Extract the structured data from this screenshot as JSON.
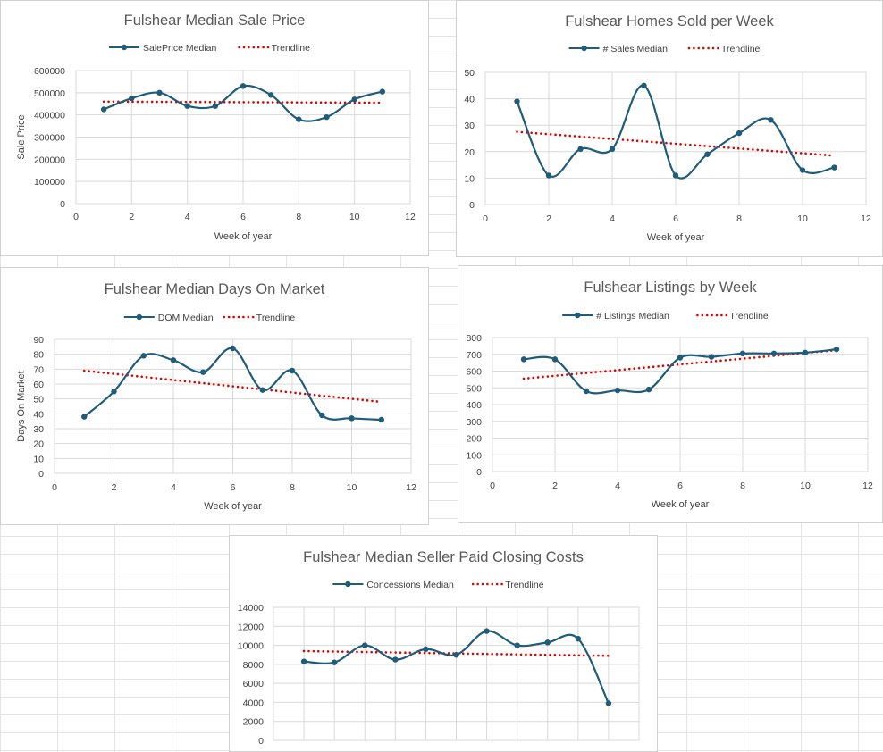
{
  "chart_data": [
    {
      "type": "line",
      "title": "Fulshear Median Sale Price",
      "xlabel": "Week of year",
      "ylabel": "Sale Price",
      "xlim": [
        0,
        12
      ],
      "ylim": [
        0,
        600000
      ],
      "x_ticks": [
        "0",
        "2",
        "4",
        "6",
        "8",
        "10",
        "12"
      ],
      "y_ticks": [
        "0",
        "100000",
        "200000",
        "300000",
        "400000",
        "500000",
        "600000"
      ],
      "grid": true,
      "legend": "top",
      "series": [
        {
          "name": "SalePrice Median",
          "color": "#1f5c7a",
          "x": [
            1,
            2,
            3,
            4,
            5,
            6,
            7,
            8,
            9,
            10,
            11
          ],
          "values": [
            425000,
            475000,
            500000,
            440000,
            440000,
            530000,
            490000,
            380000,
            390000,
            470000,
            505000
          ]
        },
        {
          "name": "Trendline",
          "color": "#e00000",
          "style": "dotted",
          "x": [
            1,
            11
          ],
          "values": [
            460000,
            455000
          ]
        }
      ]
    },
    {
      "type": "line",
      "title": "Fulshear Homes Sold per Week",
      "xlabel": "Week of year",
      "ylabel": "",
      "xlim": [
        0,
        12
      ],
      "ylim": [
        0,
        50
      ],
      "x_ticks": [
        "0",
        "2",
        "4",
        "6",
        "8",
        "10",
        "12"
      ],
      "y_ticks": [
        "0",
        "10",
        "20",
        "30",
        "40",
        "50"
      ],
      "grid": true,
      "legend": "top",
      "series": [
        {
          "name": "# Sales Median",
          "color": "#1f5c7a",
          "x": [
            1,
            2,
            3,
            4,
            5,
            6,
            7,
            8,
            9,
            10,
            11
          ],
          "values": [
            39,
            11,
            21,
            21,
            45,
            11,
            19,
            27,
            32,
            13,
            14
          ]
        },
        {
          "name": "Trendline",
          "color": "#e00000",
          "style": "dotted",
          "x": [
            1,
            11
          ],
          "values": [
            27.5,
            18.5
          ]
        }
      ]
    },
    {
      "type": "line",
      "title": "Fulshear Median Days On Market",
      "xlabel": "Week of year",
      "ylabel": "Days On Market",
      "xlim": [
        0,
        12
      ],
      "ylim": [
        0,
        90
      ],
      "x_ticks": [
        "0",
        "2",
        "4",
        "6",
        "8",
        "10",
        "12"
      ],
      "y_ticks": [
        "0",
        "10",
        "20",
        "30",
        "40",
        "50",
        "60",
        "70",
        "80",
        "90"
      ],
      "grid": true,
      "legend": "top",
      "series": [
        {
          "name": "DOM Median",
          "color": "#1f5c7a",
          "x": [
            1,
            2,
            3,
            4,
            5,
            6,
            7,
            8,
            9,
            10,
            11
          ],
          "values": [
            38,
            55,
            79,
            76,
            68,
            84,
            56,
            69,
            39,
            37,
            36
          ]
        },
        {
          "name": "Trendline",
          "color": "#e00000",
          "style": "dotted",
          "x": [
            1,
            11
          ],
          "values": [
            69,
            48
          ]
        }
      ]
    },
    {
      "type": "line",
      "title": "Fulshear Listings by Week",
      "xlabel": "Week of year",
      "ylabel": "",
      "xlim": [
        0,
        12
      ],
      "ylim": [
        0,
        800
      ],
      "x_ticks": [
        "0",
        "2",
        "4",
        "6",
        "8",
        "10",
        "12"
      ],
      "y_ticks": [
        "0",
        "100",
        "200",
        "300",
        "400",
        "500",
        "600",
        "700",
        "800"
      ],
      "grid": true,
      "legend": "top",
      "series": [
        {
          "name": "# Listings Median",
          "color": "#1f5c7a",
          "x": [
            1,
            2,
            3,
            4,
            5,
            6,
            7,
            8,
            9,
            10,
            11
          ],
          "values": [
            670,
            670,
            480,
            485,
            490,
            680,
            685,
            705,
            705,
            710,
            730
          ]
        },
        {
          "name": "Trendline",
          "color": "#e00000",
          "style": "dotted",
          "x": [
            1,
            11
          ],
          "values": [
            555,
            725
          ]
        }
      ]
    },
    {
      "type": "line",
      "title": "Fulshear Median Seller Paid Closing Costs",
      "xlabel": "",
      "ylabel": "",
      "xlim": [
        0,
        12
      ],
      "ylim": [
        0,
        14000
      ],
      "x_ticks": [],
      "y_ticks": [
        "0",
        "2000",
        "4000",
        "6000",
        "8000",
        "10000",
        "12000",
        "14000"
      ],
      "grid": true,
      "legend": "top",
      "series": [
        {
          "name": "Concessions Median",
          "color": "#1f5c7a",
          "x": [
            1,
            2,
            3,
            4,
            5,
            6,
            7,
            8,
            9,
            10,
            11
          ],
          "values": [
            8300,
            8200,
            10000,
            8500,
            9600,
            9000,
            11500,
            10000,
            10300,
            10700,
            3900
          ]
        },
        {
          "name": "Trendline",
          "color": "#e00000",
          "style": "dotted",
          "x": [
            1,
            11
          ],
          "values": [
            9400,
            8900
          ]
        }
      ]
    }
  ]
}
